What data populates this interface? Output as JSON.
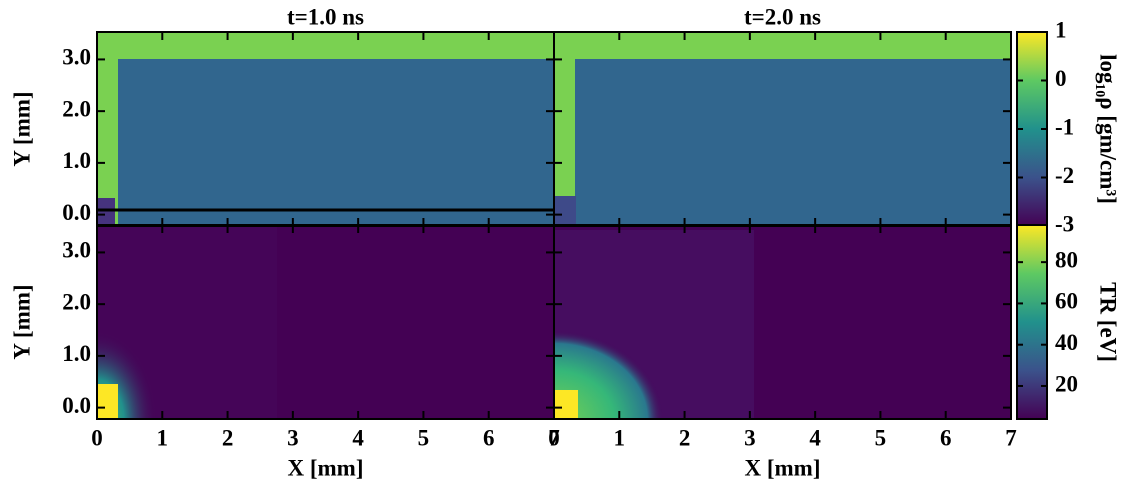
{
  "chart_data": [
    {
      "type": "field",
      "title": "t=1.0 ns",
      "ylabel": "Y [mm]",
      "xlim": [
        0,
        7
      ],
      "ylim": [
        -0.22,
        3.53
      ],
      "yticks": [
        {
          "value": 0,
          "label": "0.0"
        },
        {
          "value": 1,
          "label": "1.0"
        },
        {
          "value": 2,
          "label": "2.0"
        },
        {
          "value": 3,
          "label": "3.0"
        }
      ]
    },
    {
      "type": "field",
      "title": "t=2.0 ns",
      "xlim": [
        0,
        7
      ],
      "ylim": [
        -0.22,
        3.53
      ]
    },
    {
      "type": "field",
      "xlabel": "X [mm]",
      "ylabel": "Y [mm]",
      "xlim": [
        0,
        7
      ],
      "ylim": [
        -0.22,
        3.53
      ],
      "xticks": [
        0,
        1,
        2,
        3,
        4,
        5,
        6,
        7
      ],
      "yticks": [
        {
          "value": 0,
          "label": "0.0"
        },
        {
          "value": 1,
          "label": "1.0"
        },
        {
          "value": 2,
          "label": "2.0"
        },
        {
          "value": 3,
          "label": "3.0"
        }
      ]
    },
    {
      "type": "field",
      "xlabel": "X [mm]",
      "xlim": [
        0,
        7
      ],
      "ylim": [
        -0.22,
        3.53
      ],
      "xticks": [
        0,
        1,
        2,
        3,
        4,
        5,
        6,
        7
      ]
    },
    {
      "type": "colorbar",
      "label": "log₁₀ρ [gm/cm³]",
      "ylim": [
        -3,
        1
      ],
      "yticks": [
        -3,
        -2,
        -1,
        0,
        1
      ],
      "colors": [
        "#440154",
        "#3b528b",
        "#21918c",
        "#5ec962",
        "#fde725"
      ]
    },
    {
      "type": "colorbar",
      "label": "TR [eV]",
      "ylim": [
        4,
        98
      ],
      "yticks": [
        20,
        40,
        60,
        80
      ],
      "colors": [
        "#440154",
        "#3b528b",
        "#21918c",
        "#5ec962",
        "#fde725"
      ]
    }
  ]
}
